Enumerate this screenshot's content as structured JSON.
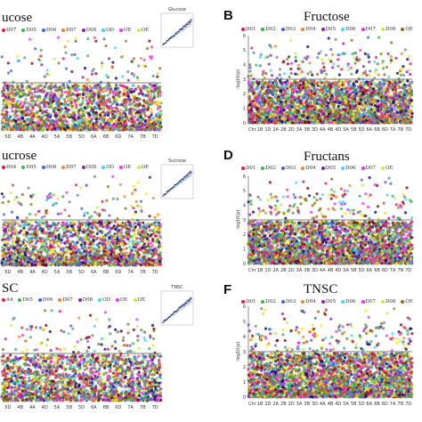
{
  "chart_data": [
    {
      "type": "scatter",
      "title": "ucose",
      "letter": "",
      "legend": [
        "D07",
        "D05",
        "D06",
        "D07",
        "D08",
        "OD",
        "OE",
        "OE"
      ],
      "xticks": [
        "5D",
        "4B",
        "4A",
        "4D",
        "5A",
        "5B",
        "5D",
        "6A",
        "6B",
        "6D",
        "7A",
        "7B",
        "7D"
      ],
      "ylabel": "",
      "yticks": [],
      "ylim": [
        0,
        6
      ],
      "threshold": 3.0,
      "qq_title": "Glucose"
    },
    {
      "type": "scatter",
      "title": "Fructose",
      "letter": "B",
      "legend": [
        "D01",
        "D02",
        "D03",
        "D04",
        "D05",
        "D06",
        "D07",
        "D08",
        "OE"
      ],
      "xticks": [
        "Chr",
        "1B",
        "1D",
        "2A",
        "2B",
        "2D",
        "3A",
        "3B",
        "3D",
        "4A",
        "4B",
        "4D",
        "5A",
        "5B",
        "5D",
        "6A",
        "6B",
        "6D",
        "7A",
        "7B",
        "7D"
      ],
      "ylabel": "-log10(p)",
      "yticks": [
        "0",
        "1",
        "2",
        "3",
        "4",
        "5",
        "6"
      ],
      "ylim": [
        0,
        6
      ],
      "threshold": 3.0,
      "qq_title": ""
    },
    {
      "type": "scatter",
      "title": "ucrose",
      "letter": "",
      "legend": [
        "D04",
        "D05",
        "D06",
        "D07",
        "D08",
        "OD",
        "OE",
        "OE"
      ],
      "xticks": [
        "5D",
        "4B",
        "4A",
        "4D",
        "5A",
        "5B",
        "5D",
        "6A",
        "6B",
        "6D",
        "7A",
        "7B",
        "7D"
      ],
      "ylabel": "",
      "yticks": [],
      "ylim": [
        0,
        6
      ],
      "threshold": 3.0,
      "qq_title": "Sucrose"
    },
    {
      "type": "scatter",
      "title": "Fructans",
      "letter": "D",
      "legend": [
        "D01",
        "D02",
        "D03",
        "D04",
        "D05",
        "D06",
        "D07",
        "OE"
      ],
      "xticks": [
        "Chr",
        "1B",
        "1D",
        "2A",
        "2B",
        "2D",
        "3A",
        "3B",
        "3D",
        "4A",
        "4B",
        "4D",
        "5A",
        "5B",
        "5D",
        "6A",
        "6B",
        "6D",
        "7A",
        "7B",
        "7D"
      ],
      "ylabel": "-log10(p)",
      "yticks": [
        "0",
        "1",
        "2",
        "3",
        "4",
        "5",
        "6"
      ],
      "ylim": [
        0,
        6
      ],
      "threshold": 3.0,
      "qq_title": ""
    },
    {
      "type": "scatter",
      "title": "SC",
      "letter": "",
      "legend": [
        "A4",
        "D05",
        "D06",
        "D07",
        "D08",
        "OD",
        "OE",
        "OE"
      ],
      "xticks": [
        "5D",
        "4B",
        "4A",
        "4D",
        "5A",
        "5B",
        "5D",
        "6A",
        "6B",
        "6D",
        "7A",
        "7B",
        "7D"
      ],
      "ylabel": "",
      "yticks": [],
      "ylim": [
        0,
        6
      ],
      "threshold": 3.0,
      "qq_title": "TNSC"
    },
    {
      "type": "scatter",
      "title": "TNSC",
      "letter": "F",
      "legend": [
        "D01",
        "D02",
        "D03",
        "D04",
        "D05",
        "D06",
        "D07",
        "D08",
        "OE"
      ],
      "xticks": [
        "Chr",
        "1B",
        "1D",
        "2A",
        "2B",
        "2D",
        "3A",
        "3B",
        "3D",
        "4A",
        "4B",
        "4D",
        "5A",
        "5B",
        "5D",
        "6A",
        "6B",
        "6D",
        "7A",
        "7B",
        "7D"
      ],
      "ylabel": "-log10(p)",
      "yticks": [
        "0",
        "1",
        "2",
        "3",
        "4",
        "5",
        "6"
      ],
      "ylim": [
        0,
        6
      ],
      "threshold": 3.0,
      "qq_title": ""
    }
  ],
  "palette": [
    "#e6194b",
    "#3cb44b",
    "#4363d8",
    "#f58231",
    "#911eb4",
    "#42d4f4",
    "#f032e6",
    "#bfef45",
    "#9a6324",
    "#800000",
    "#469990",
    "#000075",
    "#808000",
    "#ffe119",
    "#808080"
  ]
}
